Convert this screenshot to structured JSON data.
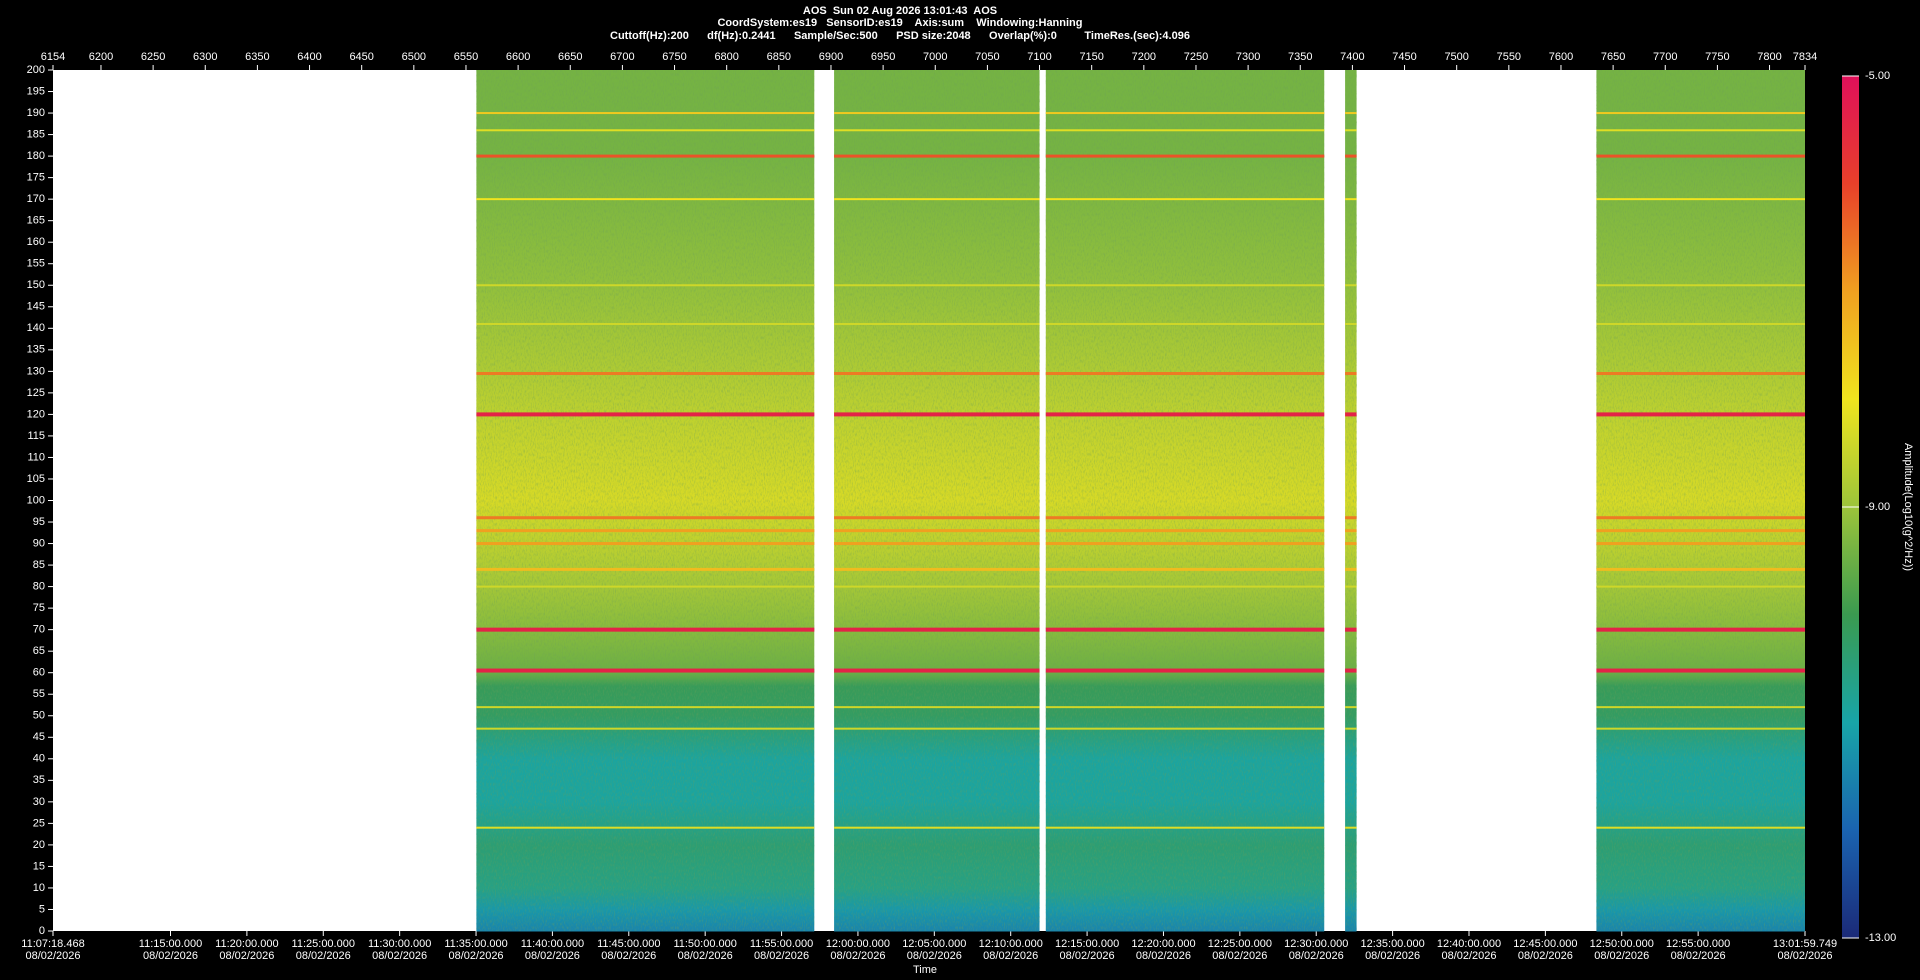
{
  "chart_data": {
    "type": "spectrogram",
    "header": [
      "AOS  Sun 02 Aug 2026 13:01:43  AOS",
      "CoordSystem:es19   SensorID:es19    Axis:sum    Windowing:Hanning",
      "Cuttoff(Hz):200      df(Hz):0.2441      Sample/Sec:500      PSD size:2048      Overlap(%):0         TimeRes.(sec):4.096"
    ],
    "xlim": [
      6154,
      7834
    ],
    "xticks": [
      6154,
      6200,
      6250,
      6300,
      6350,
      6400,
      6450,
      6500,
      6550,
      6600,
      6650,
      6700,
      6750,
      6800,
      6850,
      6900,
      6950,
      7000,
      7050,
      7100,
      7150,
      7200,
      7250,
      7300,
      7350,
      7400,
      7450,
      7500,
      7550,
      7600,
      7650,
      7700,
      7750,
      7800,
      7834
    ],
    "ylim": [
      0,
      200
    ],
    "yticks": [
      0,
      5,
      10,
      15,
      20,
      25,
      30,
      35,
      40,
      45,
      50,
      55,
      60,
      65,
      70,
      75,
      80,
      85,
      90,
      95,
      100,
      105,
      110,
      115,
      120,
      125,
      130,
      135,
      140,
      145,
      150,
      155,
      160,
      165,
      170,
      175,
      180,
      185,
      190,
      195,
      200
    ],
    "time_label": "Time",
    "time_ticks": [
      {
        "label": "11:07:18.468",
        "date": "08/02/2026"
      },
      {
        "label": "11:15:00.000",
        "date": "08/02/2026"
      },
      {
        "label": "11:20:00.000",
        "date": "08/02/2026"
      },
      {
        "label": "11:25:00.000",
        "date": "08/02/2026"
      },
      {
        "label": "11:30:00.000",
        "date": "08/02/2026"
      },
      {
        "label": "11:35:00.000",
        "date": "08/02/2026"
      },
      {
        "label": "11:40:00.000",
        "date": "08/02/2026"
      },
      {
        "label": "11:45:00.000",
        "date": "08/02/2026"
      },
      {
        "label": "11:50:00.000",
        "date": "08/02/2026"
      },
      {
        "label": "11:55:00.000",
        "date": "08/02/2026"
      },
      {
        "label": "12:00:00.000",
        "date": "08/02/2026"
      },
      {
        "label": "12:05:00.000",
        "date": "08/02/2026"
      },
      {
        "label": "12:10:00.000",
        "date": "08/02/2026"
      },
      {
        "label": "12:15:00.000",
        "date": "08/02/2026"
      },
      {
        "label": "12:20:00.000",
        "date": "08/02/2026"
      },
      {
        "label": "12:25:00.000",
        "date": "08/02/2026"
      },
      {
        "label": "12:30:00.000",
        "date": "08/02/2026"
      },
      {
        "label": "12:35:00.000",
        "date": "08/02/2026"
      },
      {
        "label": "12:40:00.000",
        "date": "08/02/2026"
      },
      {
        "label": "12:45:00.000",
        "date": "08/02/2026"
      },
      {
        "label": "12:50:00.000",
        "date": "08/02/2026"
      },
      {
        "label": "12:55:00.000",
        "date": "08/02/2026"
      },
      {
        "label": "13:01:59.749",
        "date": "08/02/2026"
      }
    ],
    "colorbar_label": "Amplitude(Log10(g^2/Hz))",
    "clim": [
      -13,
      -5
    ],
    "cticks": [
      {
        "value": -5,
        "label": "-5.00"
      },
      {
        "value": -9,
        "label": "-9.00"
      },
      {
        "value": -13,
        "label": "-13.00"
      }
    ],
    "colormap": [
      "#1b2a78",
      "#1a63b0",
      "#18a5a8",
      "#3a9a50",
      "#9cc43a",
      "#f0e41e",
      "#f0a020",
      "#e8402a",
      "#e0105a"
    ],
    "segments": [
      [
        6560,
        6884
      ],
      [
        6903,
        7100
      ],
      [
        7106,
        7373
      ],
      [
        7393,
        7404
      ],
      [
        7634,
        7834
      ]
    ],
    "floor": {
      "freqs": [
        0,
        5,
        10,
        20,
        30,
        40,
        50,
        57,
        60,
        80,
        100,
        120,
        150,
        180,
        200
      ],
      "values": [
        -11.5,
        -11.2,
        -10.6,
        -10.4,
        -10.9,
        -10.9,
        -10.2,
        -10.1,
        -9.5,
        -8.9,
        -8.3,
        -8.6,
        -9.1,
        -9.4,
        -9.4
      ]
    },
    "tones": {
      "freqs": [
        180,
        120,
        129.5,
        70,
        60.5,
        96,
        93,
        90,
        84,
        190,
        186,
        170,
        150,
        141,
        80,
        52,
        47,
        24
      ],
      "values": [
        -6.2,
        -5.4,
        -6.6,
        -5.4,
        -5.4,
        -6.6,
        -7,
        -7,
        -7.4,
        -7.6,
        -8.2,
        -8,
        -8.4,
        -8.4,
        -8.4,
        -8.4,
        -8.4,
        -8.2
      ]
    }
  }
}
